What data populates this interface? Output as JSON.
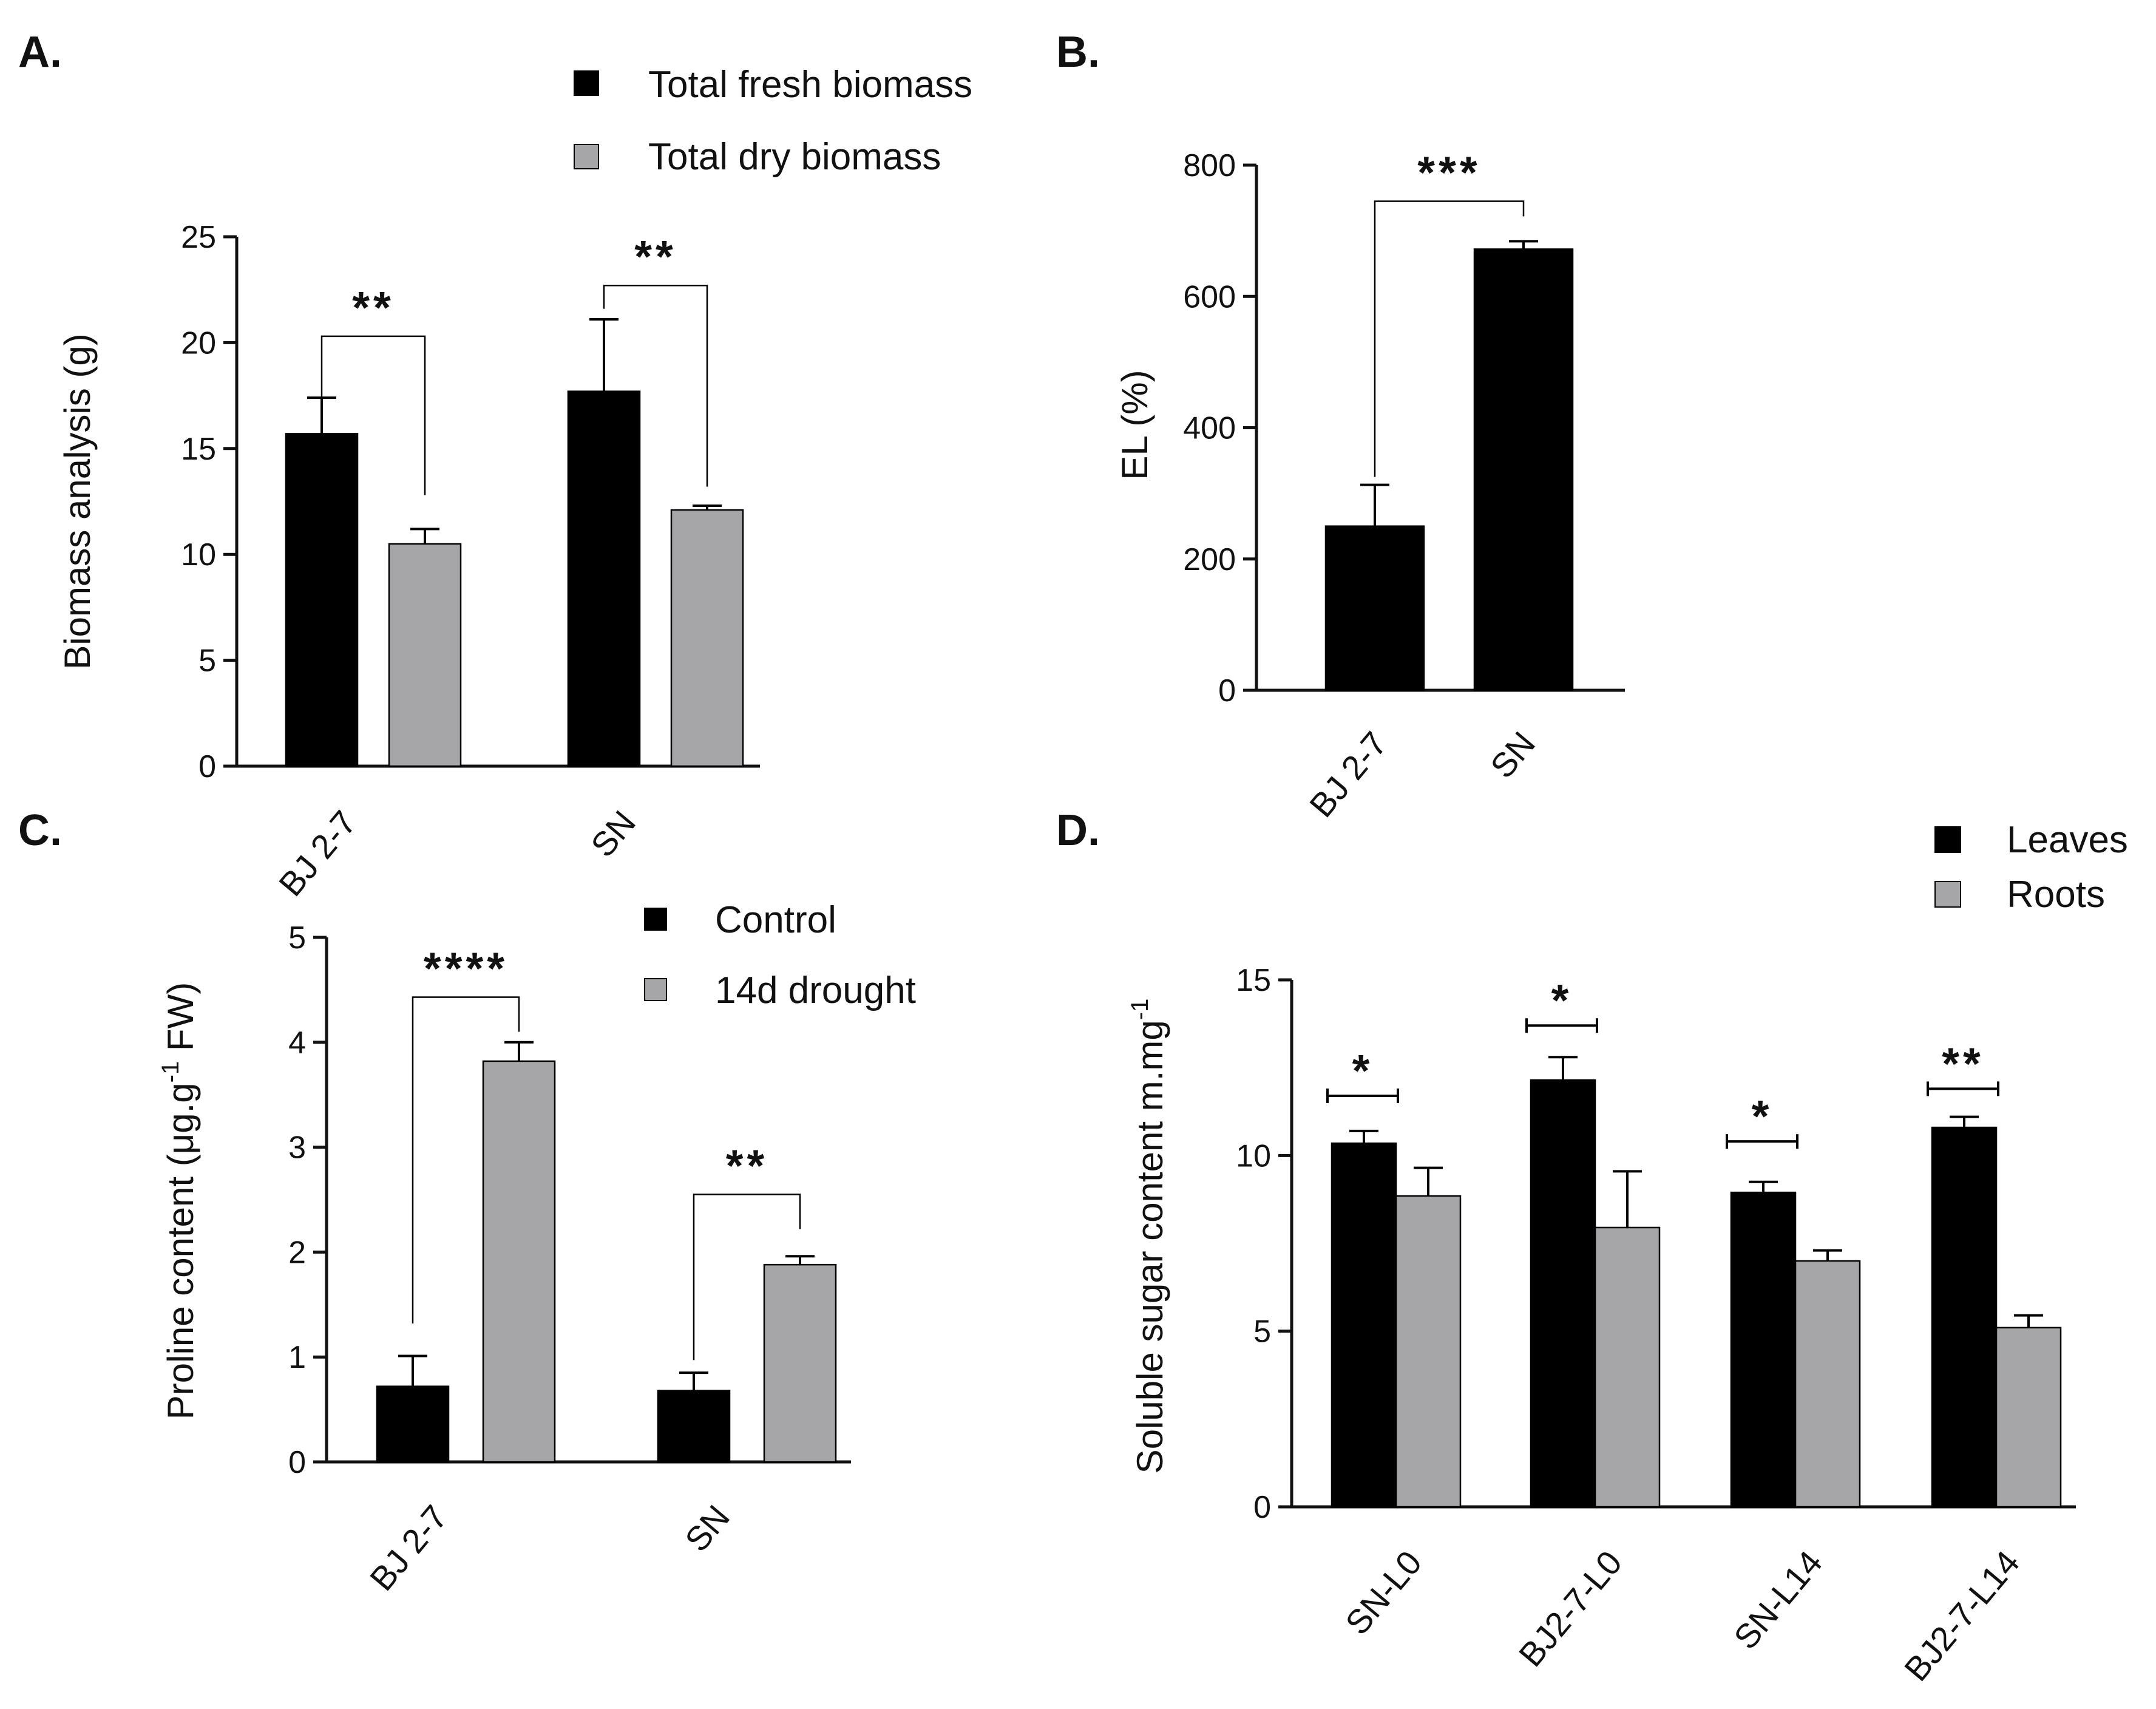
{
  "figure": {
    "colors": {
      "primary": "#000000",
      "secondary": "#a6a6a9",
      "axis": "#111111"
    }
  },
  "chart_data": [
    {
      "panel": "A.",
      "type": "bar",
      "title": "",
      "xlabel": "",
      "ylabel": "Biomass analysis (g)",
      "ylim": [
        0,
        25
      ],
      "yticks": [
        0,
        5,
        10,
        15,
        20,
        25
      ],
      "categories": [
        "BJ 2-7",
        "SN"
      ],
      "series": [
        {
          "name": "Total fresh biomass",
          "values": [
            15.7,
            17.7
          ],
          "errors": [
            1.7,
            3.4
          ]
        },
        {
          "name": "Total dry biomass",
          "values": [
            10.5,
            12.1
          ],
          "errors": [
            0.7,
            0.2
          ]
        }
      ],
      "legend": "top",
      "annotations": [
        {
          "category": "BJ 2-7",
          "text": "**",
          "level": 20.3,
          "drop_to": [
            15.9,
            12.8
          ]
        },
        {
          "category": "SN",
          "text": "**",
          "level": 22.7,
          "drop_to": [
            21.6,
            13.2
          ]
        }
      ]
    },
    {
      "panel": "B.",
      "type": "bar",
      "title": "",
      "xlabel": "",
      "ylabel": "EL (%)",
      "ylim": [
        0,
        800
      ],
      "yticks": [
        0,
        200,
        400,
        600,
        800
      ],
      "categories": [
        "BJ 2-7",
        "SN"
      ],
      "series": [
        {
          "name": "EL",
          "values": [
            250,
            672
          ],
          "errors": [
            63,
            12
          ]
        }
      ],
      "legend": "none",
      "annotations": [
        {
          "between": [
            "BJ 2-7",
            "SN"
          ],
          "text": "***",
          "level": 745,
          "drop_to": [
            325,
            722
          ]
        }
      ]
    },
    {
      "panel": "C.",
      "type": "bar",
      "title": "",
      "xlabel": "",
      "ylabel": "Proline content (μg.g",
      "ylabel_sup": "-1",
      "ylabel_tail": " FW)",
      "ylim": [
        0,
        5
      ],
      "yticks": [
        0,
        1,
        2,
        3,
        4,
        5
      ],
      "categories": [
        "BJ 2-7",
        "SN"
      ],
      "series": [
        {
          "name": "Control",
          "values": [
            0.72,
            0.68
          ],
          "errors": [
            0.29,
            0.17
          ]
        },
        {
          "name": "14d drought",
          "values": [
            3.82,
            1.88
          ],
          "errors": [
            0.18,
            0.08
          ]
        }
      ],
      "legend": "top-right",
      "annotations": [
        {
          "category": "BJ 2-7",
          "text": "****",
          "level": 4.43,
          "drop_to": [
            1.32,
            4.1
          ]
        },
        {
          "category": "SN",
          "text": "**",
          "level": 2.55,
          "drop_to": [
            0.97,
            2.22
          ]
        }
      ]
    },
    {
      "panel": "D.",
      "type": "bar",
      "title": "",
      "xlabel": "",
      "ylabel": "Soluble sugar content m.mg",
      "ylabel_sup": "-1",
      "ylim": [
        0,
        15
      ],
      "yticks": [
        0,
        5,
        10,
        15
      ],
      "categories": [
        "SN-L0",
        "BJ2-7-L0",
        "SN-L14",
        "BJ2-7-L14"
      ],
      "series": [
        {
          "name": "Leaves",
          "values": [
            10.35,
            12.15,
            8.95,
            10.8
          ],
          "errors": [
            0.35,
            0.65,
            0.3,
            0.3
          ]
        },
        {
          "name": "Roots",
          "values": [
            8.85,
            7.95,
            7.0,
            5.1
          ],
          "errors": [
            0.8,
            1.6,
            0.3,
            0.35
          ]
        }
      ],
      "legend": "top-right",
      "annotations": [
        {
          "category": "SN-L0",
          "text": "*",
          "level": 11.7
        },
        {
          "category": "BJ2-7-L0",
          "text": "*",
          "level": 13.7
        },
        {
          "category": "SN-L14",
          "text": "*",
          "level": 10.4
        },
        {
          "category": "BJ2-7-L14",
          "text": "**",
          "level": 11.9
        }
      ]
    }
  ]
}
